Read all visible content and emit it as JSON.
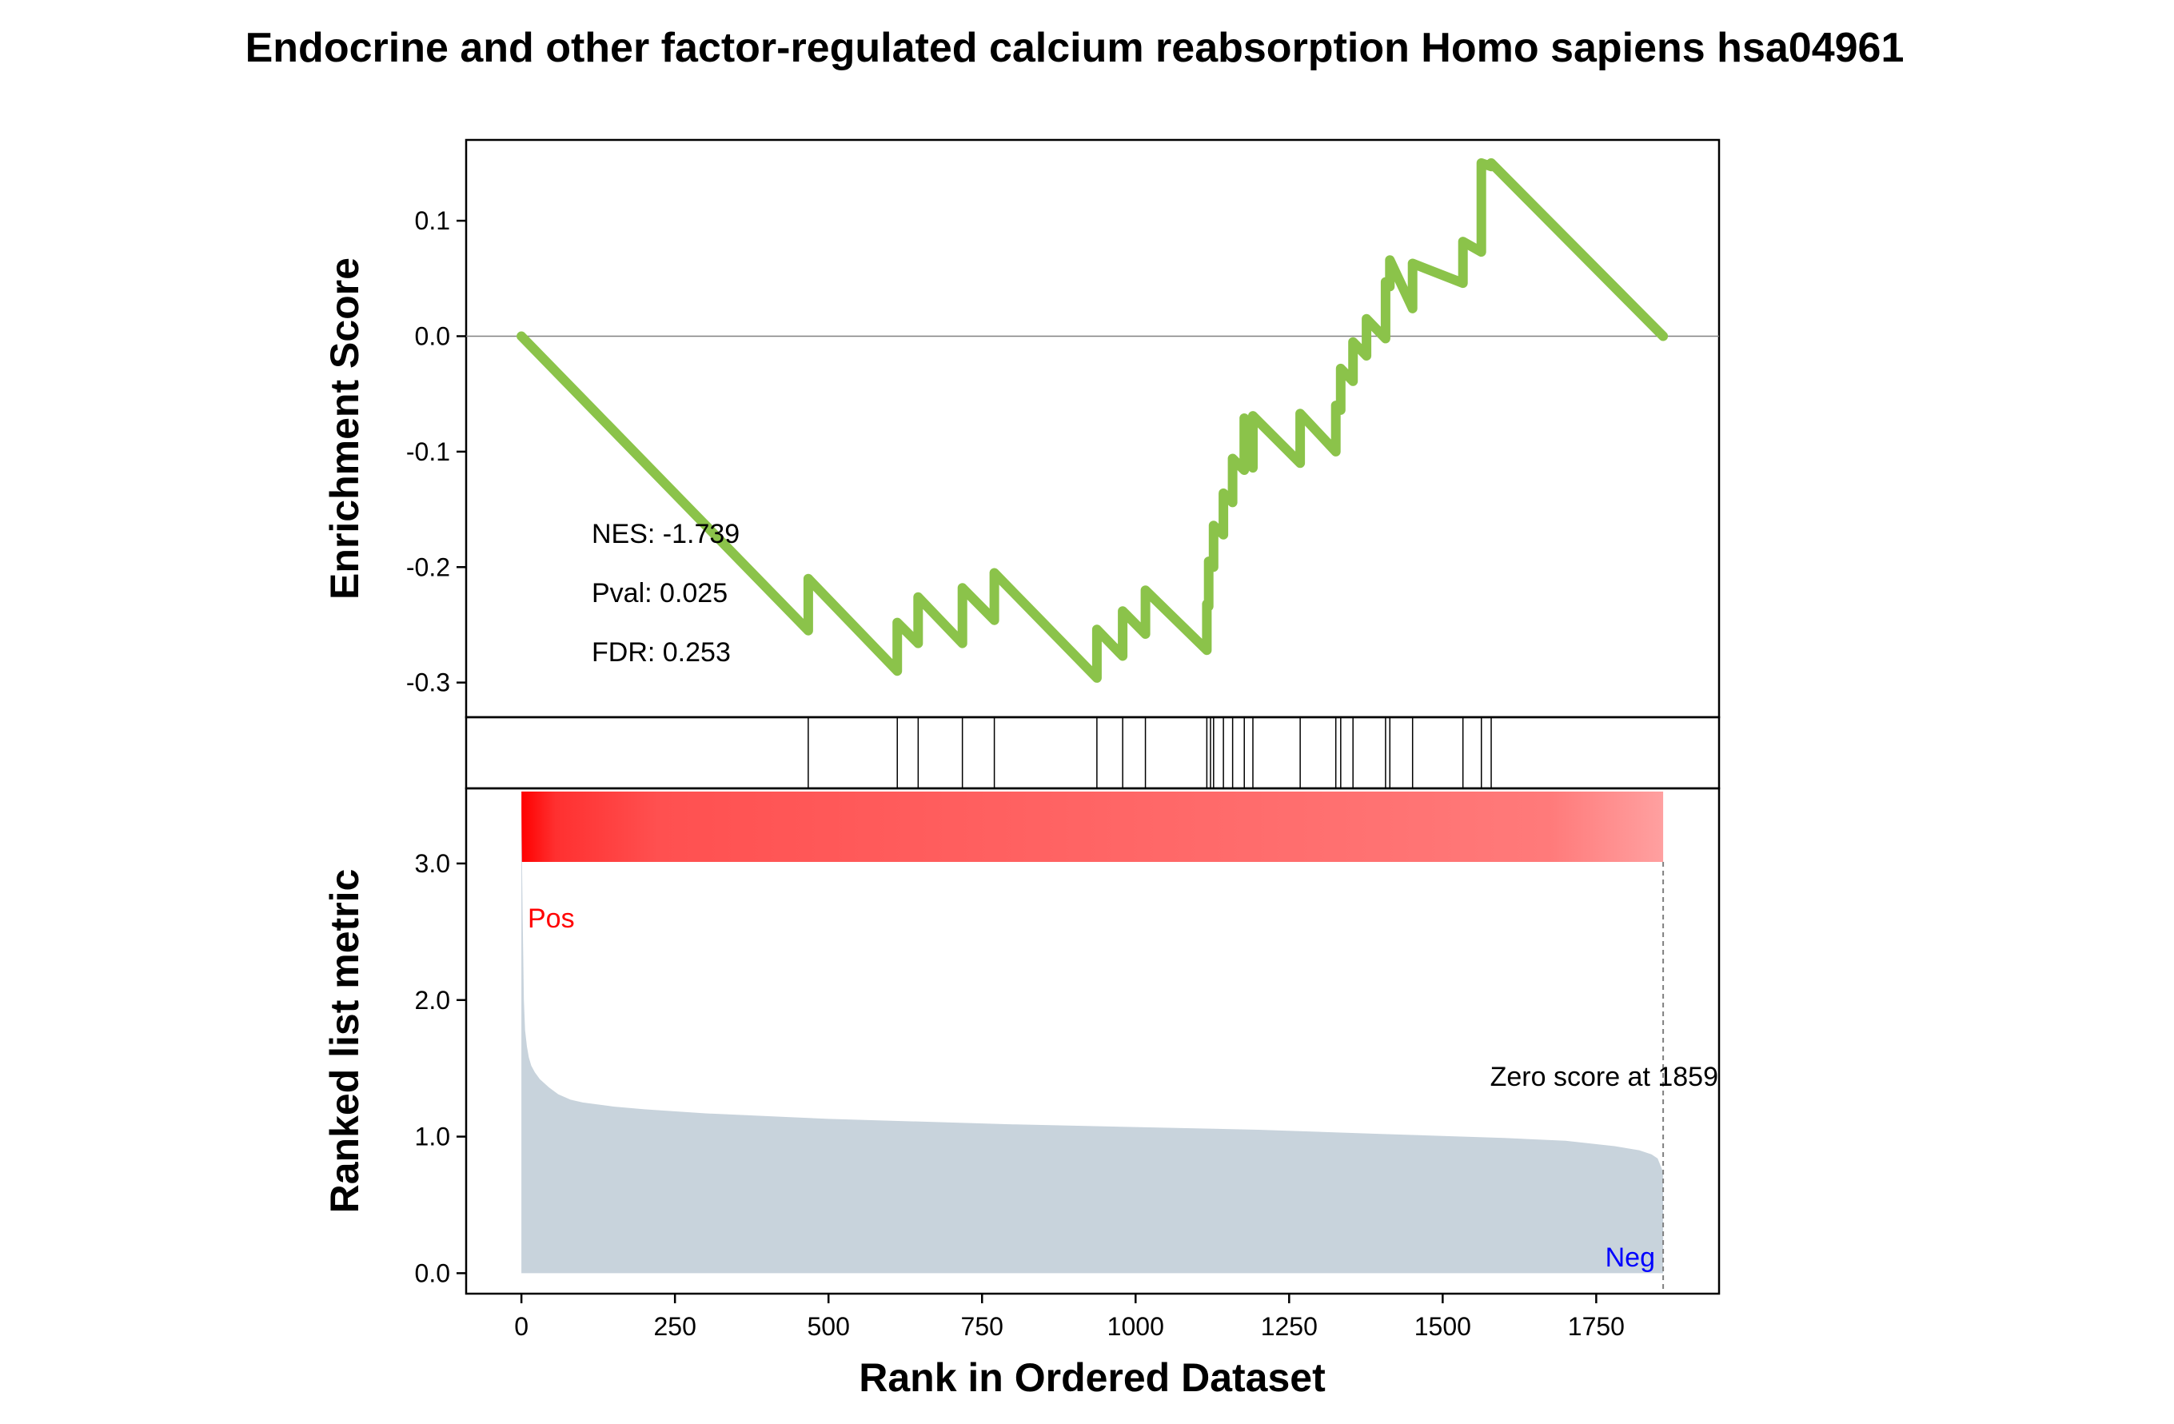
{
  "chart_data": {
    "type": "line",
    "title": "Endocrine and other factor-regulated calcium reabsorption Homo sapiens hsa04961",
    "xlabel": "Rank in Ordered Dataset",
    "xlim": [
      -90,
      1950
    ],
    "x_ticks": [
      0,
      250,
      500,
      750,
      1000,
      1250,
      1500,
      1750
    ],
    "x_tick_labels": [
      "0",
      "250",
      "500",
      "750",
      "1000",
      "1250",
      "1500",
      "1750"
    ],
    "enrichment": {
      "ylabel": "Enrichment Score",
      "ylim": [
        -0.33,
        0.17
      ],
      "y_ticks": [
        -0.3,
        -0.2,
        -0.1,
        0.0,
        0.1
      ],
      "y_tick_labels": [
        "-0.3",
        "-0.2",
        "-0.1",
        "0.0",
        "0.1"
      ],
      "line_color": "#8bc34a",
      "zero_line": true,
      "stats": [
        "NES: -1.739",
        "Pval: 0.025",
        "FDR: 0.253"
      ],
      "series": [
        {
          "x": [
            0,
            467,
            467,
            612,
            612,
            646,
            646,
            718,
            718,
            770,
            770,
            937,
            937,
            979,
            979,
            1016,
            1016,
            1116,
            1116,
            1119,
            1119,
            1127,
            1127,
            1143,
            1143,
            1158,
            1158,
            1177,
            1177,
            1191,
            1191,
            1268,
            1268,
            1326,
            1326,
            1334,
            1334,
            1354,
            1354,
            1376,
            1376,
            1407,
            1407,
            1414,
            1414,
            1451,
            1451,
            1533,
            1533,
            1563,
            1563,
            1579,
            1579,
            1859
          ],
          "y": [
            0.0,
            -0.255,
            -0.21,
            -0.29,
            -0.248,
            -0.266,
            -0.226,
            -0.266,
            -0.218,
            -0.246,
            -0.205,
            -0.296,
            -0.254,
            -0.277,
            -0.238,
            -0.258,
            -0.22,
            -0.272,
            -0.232,
            -0.234,
            -0.195,
            -0.2,
            -0.164,
            -0.172,
            -0.136,
            -0.144,
            -0.106,
            -0.116,
            -0.071,
            -0.114,
            -0.069,
            -0.11,
            -0.067,
            -0.1,
            -0.06,
            -0.064,
            -0.028,
            -0.039,
            -0.005,
            -0.017,
            0.015,
            -0.002,
            0.047,
            0.043,
            0.066,
            0.024,
            0.063,
            0.046,
            0.082,
            0.073,
            0.15,
            0.147,
            0.15,
            0.0
          ]
        }
      ]
    },
    "hits": {
      "x": [
        467,
        612,
        646,
        718,
        770,
        937,
        979,
        1016,
        1116,
        1122,
        1127,
        1143,
        1158,
        1177,
        1191,
        1268,
        1326,
        1334,
        1354,
        1407,
        1414,
        1451,
        1533,
        1563,
        1579
      ]
    },
    "ranked_metric": {
      "ylabel": "Ranked list metric",
      "ylim": [
        -0.15,
        3.55
      ],
      "y_ticks": [
        0.0,
        1.0,
        2.0,
        3.0
      ],
      "y_tick_labels": [
        "0.0",
        "1.0",
        "2.0",
        "3.0"
      ],
      "fill_color": "#c8d3dc",
      "heatbar": {
        "start_color": "#ff0000",
        "end_color": "#ffa0a0"
      },
      "zero_score_rank": 1859,
      "series": [
        {
          "x": [
            0,
            2,
            4,
            6,
            9,
            12,
            16,
            22,
            30,
            45,
            60,
            80,
            100,
            150,
            200,
            300,
            500,
            800,
            1000,
            1200,
            1400,
            1600,
            1700,
            1780,
            1820,
            1840,
            1850,
            1859
          ],
          "y": [
            3.4,
            2.6,
            2.0,
            1.78,
            1.66,
            1.58,
            1.52,
            1.47,
            1.42,
            1.36,
            1.31,
            1.27,
            1.25,
            1.22,
            1.2,
            1.17,
            1.13,
            1.09,
            1.07,
            1.05,
            1.02,
            0.99,
            0.97,
            0.93,
            0.9,
            0.87,
            0.84,
            0.74
          ]
        }
      ]
    },
    "annotations": {
      "pos_label": "Pos",
      "neg_label": "Neg",
      "zero_score_label": "Zero score at 1859"
    }
  }
}
